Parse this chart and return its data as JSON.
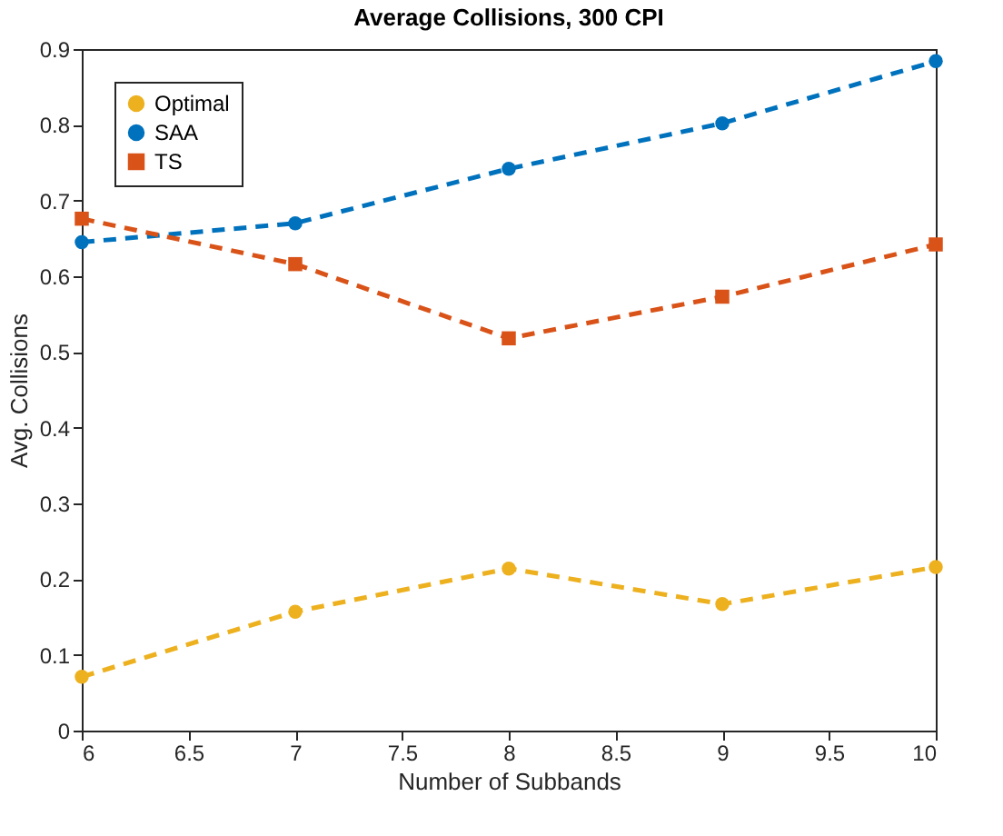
{
  "chart_data": {
    "type": "line",
    "title": "Average Collisions, 300 CPI",
    "xlabel": "Number of Subbands",
    "ylabel": "Avg. Collisions",
    "x": [
      6,
      7,
      8,
      9,
      10
    ],
    "series": [
      {
        "name": "Optimal",
        "color": "#edb120",
        "marker": "circle",
        "values": [
          0.071,
          0.157,
          0.214,
          0.167,
          0.216
        ]
      },
      {
        "name": "SAA",
        "color": "#0072bd",
        "marker": "circle",
        "values": [
          0.645,
          0.67,
          0.742,
          0.802,
          0.884
        ]
      },
      {
        "name": "TS",
        "color": "#d95319",
        "marker": "square",
        "values": [
          0.676,
          0.616,
          0.518,
          0.573,
          0.642
        ]
      }
    ],
    "xlim": [
      6,
      10
    ],
    "xticks": [
      6,
      6.5,
      7,
      7.5,
      8,
      8.5,
      9,
      9.5,
      10
    ],
    "ylim": [
      0,
      0.9
    ],
    "yticks": [
      0,
      0.1,
      0.2,
      0.3,
      0.4,
      0.5,
      0.6,
      0.7,
      0.8,
      0.9
    ],
    "grid": false,
    "legend": "top left",
    "line_style": "dashed"
  }
}
